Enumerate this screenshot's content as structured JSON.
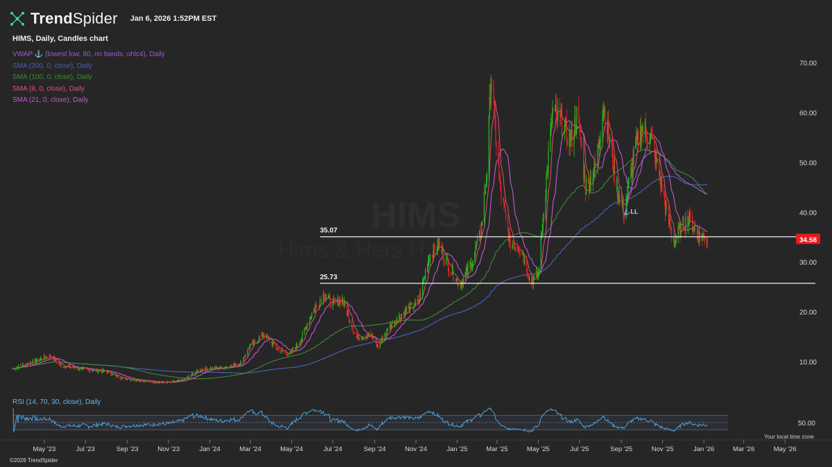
{
  "header": {
    "brand_bold": "Trend",
    "brand_light": "Spider",
    "timestamp": "Jan 6, 2026 1:52PM EST",
    "logo_icon": "trendspider-network-icon"
  },
  "chart_title": "HIMS, Daily, Candles chart",
  "watermark": {
    "symbol": "HIMS",
    "company": "Hims & Hers H..."
  },
  "indicators": [
    {
      "label": "VWAP ⚓ (lowest low, 80, no bands, ohlc4), Daily",
      "color": "#9b59d0"
    },
    {
      "label": "SMA (200, 0, close), Daily",
      "color": "#4a5fb8"
    },
    {
      "label": "SMA (100, 0, close), Daily",
      "color": "#3f8a3f"
    },
    {
      "label": "SMA (8, 0, close), Daily",
      "color": "#e0527a"
    },
    {
      "label": "SMA (21, 0, close), Daily",
      "color": "#c05ad0"
    }
  ],
  "rsi_label": "RSI (14, 70, 30, close), Daily",
  "timezone_note": "Your local time zone",
  "copyright": "©2026 TrendSpider",
  "anchor_marker": "⚓LL",
  "last_price": "34.58",
  "colors": {
    "up": "#22c01c",
    "down": "#e02424",
    "price_tag": "#e8191e",
    "rsi": "#4aa3df"
  },
  "chart_data": {
    "type": "candlestick",
    "symbol": "HIMS",
    "timeframe": "Daily",
    "ylim": [
      4,
      74
    ],
    "y_ticks": [
      "10.00",
      "20.00",
      "30.00",
      "40.00",
      "50.00",
      "60.00",
      "70.00"
    ],
    "y_tick_values": [
      10,
      20,
      30,
      40,
      50,
      60,
      70
    ],
    "x_ticks": [
      "May '23",
      "Jul '23",
      "Sep '23",
      "Nov '23",
      "Jan '24",
      "Mar '24",
      "May '24",
      "Jul '24",
      "Sep '24",
      "Nov '24",
      "Jan '25",
      "Mar '25",
      "May '25",
      "Jul '25",
      "Sep '25",
      "Nov '25",
      "Jan '26",
      "Mar '26",
      "May '26"
    ],
    "x_tick_dates": [
      "2023-05-01",
      "2023-07-01",
      "2023-09-01",
      "2023-11-01",
      "2024-01-01",
      "2024-03-01",
      "2024-05-01",
      "2024-07-01",
      "2024-09-01",
      "2024-11-01",
      "2025-01-01",
      "2025-03-01",
      "2025-05-01",
      "2025-07-01",
      "2025-09-01",
      "2025-11-01",
      "2026-01-01",
      "2026-03-01",
      "2026-05-01"
    ],
    "xlim": [
      "2023-03-15",
      "2026-06-15"
    ],
    "price_path": [
      [
        "2023-03-15",
        8.6
      ],
      [
        "2023-04-15",
        10.0
      ],
      [
        "2023-05-10",
        11.2
      ],
      [
        "2023-05-25",
        9.2
      ],
      [
        "2023-07-01",
        8.4
      ],
      [
        "2023-08-01",
        8.0
      ],
      [
        "2023-08-20",
        6.8
      ],
      [
        "2023-10-01",
        6.0
      ],
      [
        "2023-11-01",
        5.8
      ],
      [
        "2023-11-20",
        6.2
      ],
      [
        "2023-12-20",
        8.5
      ],
      [
        "2024-01-20",
        8.8
      ],
      [
        "2024-02-15",
        9.6
      ],
      [
        "2024-02-28",
        12.8
      ],
      [
        "2024-03-20",
        15.5
      ],
      [
        "2024-04-10",
        12.5
      ],
      [
        "2024-04-28",
        11.4
      ],
      [
        "2024-05-15",
        14.5
      ],
      [
        "2024-06-01",
        20.0
      ],
      [
        "2024-06-18",
        23.5
      ],
      [
        "2024-07-01",
        21.5
      ],
      [
        "2024-07-15",
        22.5
      ],
      [
        "2024-08-05",
        14.8
      ],
      [
        "2024-08-25",
        15.5
      ],
      [
        "2024-09-05",
        13.0
      ],
      [
        "2024-09-25",
        17.5
      ],
      [
        "2024-10-20",
        20.5
      ],
      [
        "2024-11-05",
        22.0
      ],
      [
        "2024-11-20",
        31.0
      ],
      [
        "2024-12-05",
        33.5
      ],
      [
        "2024-12-20",
        29.0
      ],
      [
        "2025-01-05",
        25.5
      ],
      [
        "2025-01-20",
        29.0
      ],
      [
        "2025-02-05",
        36.0
      ],
      [
        "2025-02-15",
        50.0
      ],
      [
        "2025-02-20",
        68.0
      ],
      [
        "2025-03-05",
        45.0
      ],
      [
        "2025-03-20",
        34.0
      ],
      [
        "2025-04-05",
        33.0
      ],
      [
        "2025-04-20",
        26.0
      ],
      [
        "2025-05-01",
        27.5
      ],
      [
        "2025-05-10",
        42.0
      ],
      [
        "2025-05-22",
        60.0
      ],
      [
        "2025-06-05",
        58.0
      ],
      [
        "2025-06-18",
        54.0
      ],
      [
        "2025-06-28",
        60.0
      ],
      [
        "2025-07-10",
        45.0
      ],
      [
        "2025-07-25",
        49.0
      ],
      [
        "2025-08-05",
        62.0
      ],
      [
        "2025-08-15",
        54.0
      ],
      [
        "2025-08-25",
        45.0
      ],
      [
        "2025-09-05",
        40.0
      ],
      [
        "2025-09-20",
        52.0
      ],
      [
        "2025-10-01",
        57.0
      ],
      [
        "2025-10-15",
        55.0
      ],
      [
        "2025-10-28",
        47.0
      ],
      [
        "2025-11-08",
        39.0
      ],
      [
        "2025-11-18",
        34.0
      ],
      [
        "2025-12-01",
        37.5
      ],
      [
        "2025-12-10",
        39.0
      ],
      [
        "2025-12-22",
        35.5
      ],
      [
        "2026-01-06",
        34.58
      ]
    ],
    "levels": [
      {
        "label": "35.07",
        "value": 35.07,
        "start": "2024-06-12"
      },
      {
        "label": "25.73",
        "value": 25.73,
        "start": "2024-06-12"
      }
    ],
    "last_price": 34.58,
    "anchor_point": {
      "date": "2025-09-05",
      "value": 40.0
    },
    "rsi": {
      "period": 14,
      "overbought": 70,
      "oversold": 30,
      "tick": "50.00",
      "ylim": [
        15,
        90
      ]
    }
  }
}
